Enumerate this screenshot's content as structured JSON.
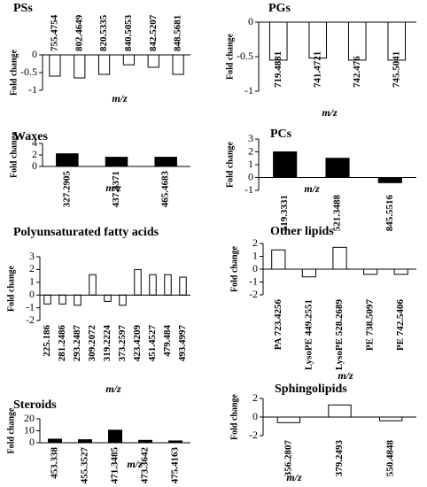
{
  "chart_data": [
    {
      "type": "bar",
      "title": "PSs",
      "xlabel": "m/z",
      "ylabel": "Fold change",
      "categories": [
        "755.4754",
        "802.4649",
        "820.5335",
        "840.5053",
        "842.5207",
        "848.5681"
      ],
      "values": [
        -0.6,
        -0.65,
        -0.55,
        -0.28,
        -0.35,
        -0.55
      ],
      "color": "#ffffff",
      "ylim": [
        -1,
        0
      ],
      "yticks": [
        0,
        -0.5,
        -1
      ]
    },
    {
      "type": "bar",
      "title": "PGs",
      "xlabel": "m/z",
      "ylabel": "Fold change",
      "categories": [
        "719.4881",
        "741.4721",
        "742.476",
        "745.5041"
      ],
      "values": [
        -0.55,
        -0.52,
        -0.55,
        -0.55
      ],
      "color": "#ffffff",
      "ylim": [
        -1,
        0
      ],
      "yticks": [
        0,
        -0.5,
        -1
      ]
    },
    {
      "type": "bar",
      "title": "Waxes",
      "xlabel": "m/z",
      "ylabel": "Fold change",
      "categories": [
        "327.2905",
        "437.4371",
        "465.4683"
      ],
      "values": [
        2.2,
        1.6,
        1.6
      ],
      "color": "#000000",
      "ylim": [
        0,
        4
      ],
      "yticks": [
        0,
        2,
        4
      ]
    },
    {
      "type": "bar",
      "title": "PCs",
      "xlabel": "m/z",
      "ylabel": "Fold change",
      "categories": [
        "519.3331",
        "521.3488",
        "845.5516"
      ],
      "values": [
        2.0,
        1.5,
        -0.4
      ],
      "color": "#000000",
      "ylim": [
        -1,
        3
      ],
      "yticks": [
        -1,
        0,
        1,
        2,
        3
      ]
    },
    {
      "type": "bar",
      "title": "Polyunsaturated fatty acids",
      "xlabel": "m/z",
      "ylabel": "Fold change",
      "categories": [
        "225.186",
        "281.2486",
        "293.2487",
        "309.2072",
        "319.2224",
        "373.2597",
        "423.4209",
        "451.4527",
        "479.484",
        "493.4997"
      ],
      "values": [
        -0.7,
        -0.7,
        -0.8,
        1.6,
        -0.5,
        -0.8,
        2.0,
        1.6,
        1.6,
        1.4
      ],
      "color": "#ffffff",
      "ylim": [
        -2,
        3
      ],
      "yticks": [
        -2,
        -1,
        0,
        1,
        2,
        3
      ]
    },
    {
      "type": "bar",
      "title": "Other lipids",
      "xlabel": "m/z",
      "ylabel": "Fold change",
      "categories": [
        "PA 723.4256",
        "LysoPE 449.2551",
        "LysoPE 528.2689",
        "PE 738.5097",
        "PE 742.5406"
      ],
      "values": [
        1.5,
        -0.6,
        1.7,
        -0.4,
        -0.4
      ],
      "color": "#ffffff",
      "ylim": [
        -2,
        2
      ],
      "yticks": [
        -2,
        -1,
        0,
        1,
        2
      ]
    },
    {
      "type": "bar",
      "title": "Steroids",
      "xlabel": "m/z",
      "ylabel": "Fold change",
      "categories": [
        "453.338",
        "455.3527",
        "471.3485",
        "473.3642",
        "475.4163"
      ],
      "values": [
        3,
        2.5,
        10.5,
        2,
        1.5
      ],
      "color": "#000000",
      "ylim": [
        0,
        20
      ],
      "yticks": [
        0,
        10,
        20
      ]
    },
    {
      "type": "bar",
      "title": "Sphingolipids",
      "xlabel": "m/z",
      "ylabel": "Fold change",
      "categories": [
        "356.2807",
        "379.2493",
        "550.4848"
      ],
      "values": [
        -0.6,
        1.3,
        -0.4
      ],
      "color": "#ffffff",
      "ylim": [
        -2,
        2
      ],
      "yticks": [
        -2,
        0,
        2
      ]
    }
  ]
}
